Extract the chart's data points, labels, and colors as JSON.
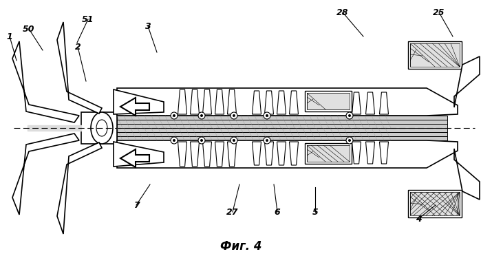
{
  "title": "Фиг. 4",
  "bg_color": "#ffffff",
  "line_color": "#000000",
  "label_color": "#000000"
}
